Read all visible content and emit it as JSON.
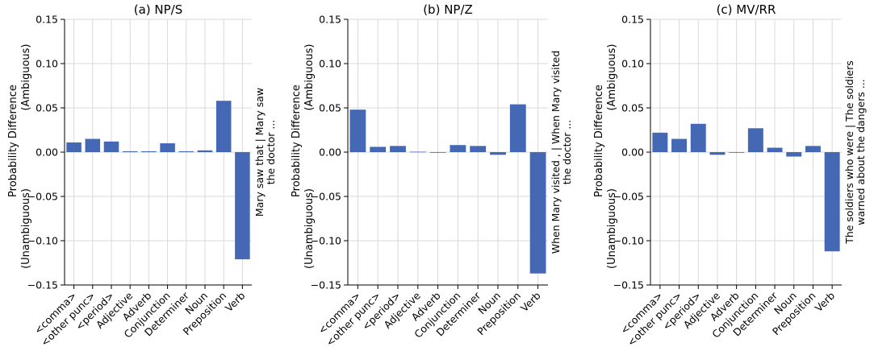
{
  "chart_data": [
    {
      "type": "bar",
      "title": "(a) NP/S",
      "ylabel_top": "Probability Difference",
      "ylabel_pos": "(Ambiguous)",
      "ylabel_neg": "(Unambiguous)",
      "side_label_lines": [
        "Mary saw that  |  Mary saw",
        "the doctor ..."
      ],
      "ylim": [
        -0.15,
        0.15
      ],
      "yticks": [
        -0.15,
        -0.1,
        -0.05,
        0.0,
        0.05,
        0.1,
        0.15
      ],
      "ytick_labels": [
        "−0.15",
        "−0.10",
        "−0.05",
        "0.00",
        "0.05",
        "0.10",
        "0.15"
      ],
      "grid": true,
      "categories": [
        "<comma>",
        "<other punc>",
        "<period>",
        "Adjective",
        "Adverb",
        "Conjunction",
        "Determiner",
        "Noun",
        "Preposition",
        "Verb"
      ],
      "values": [
        0.011,
        0.015,
        0.012,
        0.001,
        0.001,
        0.01,
        0.001,
        0.002,
        0.058,
        -0.121
      ]
    },
    {
      "type": "bar",
      "title": "(b) NP/Z",
      "ylabel_top": "Probability Difference",
      "ylabel_pos": "(Ambiguous)",
      "ylabel_neg": "(Unambiguous)",
      "side_label_lines": [
        "When Mary visited ,  |  When Mary visited",
        "the doctor ..."
      ],
      "ylim": [
        -0.15,
        0.15
      ],
      "yticks": [
        -0.15,
        -0.1,
        -0.05,
        0.0,
        0.05,
        0.1,
        0.15
      ],
      "ytick_labels": [
        "−0.15",
        "−0.10",
        "−0.05",
        "0.00",
        "0.05",
        "0.10",
        "0.15"
      ],
      "grid": true,
      "categories": [
        "<comma>",
        "<other punc>",
        "<period>",
        "Adjective",
        "Adverb",
        "Conjunction",
        "Determiner",
        "Noun",
        "Preposition",
        "Verb"
      ],
      "values": [
        0.048,
        0.006,
        0.007,
        0.0005,
        -0.0005,
        0.008,
        0.007,
        -0.003,
        0.054,
        -0.137
      ]
    },
    {
      "type": "bar",
      "title": "(c) MV/RR",
      "ylabel_top": "Probability Difference",
      "ylabel_pos": "(Ambiguous)",
      "ylabel_neg": "(Unambiguous)",
      "side_label_lines": [
        "The soldiers who were  |  The soldiers",
        "warned about the dangers ..."
      ],
      "ylim": [
        -0.15,
        0.15
      ],
      "yticks": [
        -0.15,
        -0.1,
        -0.05,
        0.0,
        0.05,
        0.1,
        0.15
      ],
      "ytick_labels": [
        "−0.15",
        "−0.10",
        "−0.05",
        "0.00",
        "0.05",
        "0.10",
        "0.15"
      ],
      "grid": true,
      "categories": [
        "<comma>",
        "<other punc>",
        "<period>",
        "Adjective",
        "Adverb",
        "Conjunction",
        "Determiner",
        "Noun",
        "Preposition",
        "Verb"
      ],
      "values": [
        0.022,
        0.015,
        0.032,
        -0.003,
        0.0,
        0.027,
        0.005,
        -0.005,
        0.007,
        -0.112
      ]
    }
  ],
  "colors": {
    "bar": "#4468b4",
    "grid": "#d9d9d9"
  }
}
